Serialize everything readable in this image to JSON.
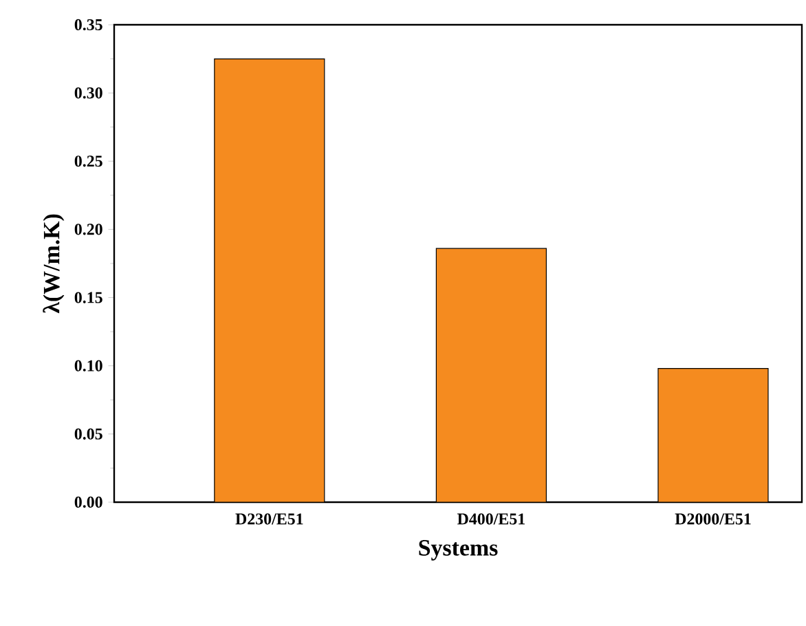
{
  "chart_data": {
    "type": "bar",
    "xlabel": "Systems",
    "ylabel": "λ(W/m.K)",
    "categories": [
      "D230/E51",
      "D400/E51",
      "D2000/E51"
    ],
    "values": [
      0.325,
      0.186,
      0.098
    ],
    "color": "#f58b1f",
    "ylim": [
      0,
      0.35
    ],
    "yticks": [
      {
        "value": 0,
        "label": "0.00"
      },
      {
        "value": 0.05,
        "label": "0.05"
      },
      {
        "value": 0.1,
        "label": "0.10"
      },
      {
        "value": 0.15,
        "label": "0.15"
      },
      {
        "value": 0.2,
        "label": "0.20"
      },
      {
        "value": 0.25,
        "label": "0.25"
      },
      {
        "value": 0.3,
        "label": "0.30"
      },
      {
        "value": 0.35,
        "label": "0.35"
      }
    ],
    "grid": false
  }
}
